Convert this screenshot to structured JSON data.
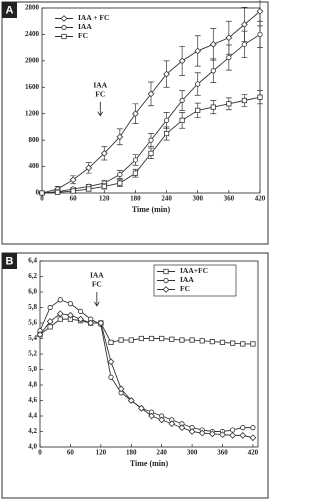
{
  "chart_data": [
    {
      "type": "line",
      "panel_label": "A",
      "xlabel": "Time (min)",
      "x": [
        0,
        30,
        60,
        90,
        120,
        150,
        180,
        210,
        240,
        270,
        300,
        330,
        360,
        390,
        420
      ],
      "series": [
        {
          "name": "IAA + FC",
          "color": "#333333",
          "marker": "diamond",
          "values": [
            0,
            60,
            200,
            380,
            600,
            850,
            1200,
            1500,
            1800,
            2000,
            2150,
            2250,
            2350,
            2550,
            2750
          ],
          "errors": [
            20,
            40,
            60,
            80,
            100,
            120,
            150,
            180,
            200,
            220,
            230,
            240,
            250,
            260,
            220
          ]
        },
        {
          "name": "IAA",
          "color": "#333333",
          "marker": "circle",
          "values": [
            0,
            20,
            60,
            100,
            150,
            280,
            500,
            800,
            1100,
            1400,
            1650,
            1850,
            2050,
            2250,
            2400
          ],
          "errors": [
            10,
            15,
            20,
            30,
            40,
            60,
            80,
            100,
            120,
            150,
            170,
            180,
            190,
            200,
            200
          ]
        },
        {
          "name": "FC",
          "color": "#333333",
          "marker": "square",
          "values": [
            0,
            10,
            30,
            60,
            100,
            150,
            300,
            600,
            900,
            1100,
            1250,
            1300,
            1350,
            1400,
            1450
          ],
          "errors": [
            10,
            15,
            20,
            30,
            40,
            50,
            60,
            80,
            100,
            120,
            110,
            100,
            90,
            90,
            100
          ]
        }
      ],
      "xlim": [
        0,
        420
      ],
      "xticks": [
        0,
        60,
        120,
        180,
        240,
        300,
        360,
        420
      ],
      "ylim": [
        0,
        2800
      ],
      "yticks": [
        0,
        400,
        800,
        1200,
        1600,
        2000,
        2400,
        2800
      ],
      "legend": "upper left",
      "annotation": {
        "text": [
          "IAA",
          "FC"
        ],
        "x": 120
      }
    },
    {
      "type": "line",
      "panel_label": "B",
      "xlabel": "Time (min)",
      "x": [
        0,
        20,
        40,
        60,
        80,
        100,
        120,
        140,
        160,
        180,
        200,
        220,
        240,
        260,
        280,
        300,
        320,
        340,
        360,
        380,
        400,
        420
      ],
      "series": [
        {
          "name": "IAA+FC",
          "color": "#333333",
          "marker": "square",
          "values": [
            5.45,
            5.55,
            5.65,
            5.65,
            5.63,
            5.6,
            5.6,
            5.35,
            5.38,
            5.38,
            5.4,
            5.4,
            5.4,
            5.39,
            5.38,
            5.38,
            5.37,
            5.36,
            5.35,
            5.34,
            5.33,
            5.33
          ]
        },
        {
          "name": "IAA",
          "color": "#333333",
          "marker": "circle",
          "values": [
            5.5,
            5.8,
            5.9,
            5.85,
            5.75,
            5.65,
            5.58,
            4.9,
            4.7,
            4.6,
            4.5,
            4.45,
            4.4,
            4.35,
            4.3,
            4.25,
            4.22,
            4.2,
            4.2,
            4.22,
            4.25,
            4.25
          ]
        },
        {
          "name": "FC",
          "color": "#333333",
          "marker": "diamond",
          "values": [
            5.45,
            5.62,
            5.72,
            5.7,
            5.65,
            5.6,
            5.6,
            5.1,
            4.75,
            4.6,
            4.5,
            4.4,
            4.35,
            4.3,
            4.25,
            4.2,
            4.18,
            4.17,
            4.16,
            4.15,
            4.15,
            4.12
          ]
        }
      ],
      "xlim": [
        0,
        430
      ],
      "xticks": [
        0,
        60,
        120,
        180,
        240,
        300,
        360,
        420
      ],
      "ylim": [
        4.0,
        6.4
      ],
      "yticks": [
        {
          "value": 4.0,
          "label": "4,0"
        },
        {
          "value": 4.2,
          "label": "4,2"
        },
        {
          "value": 4.4,
          "label": "4,4"
        },
        {
          "value": 4.6,
          "label": "4,6"
        },
        {
          "value": 4.8,
          "label": "4,8"
        },
        {
          "value": 5.0,
          "label": "5,0"
        },
        {
          "value": 5.2,
          "label": "5,2"
        },
        {
          "value": 5.4,
          "label": "5,4"
        },
        {
          "value": 5.6,
          "label": "5,6"
        },
        {
          "value": 5.8,
          "label": "5,8"
        },
        {
          "value": 6.0,
          "label": "6,0"
        },
        {
          "value": 6.2,
          "label": "6,2"
        },
        {
          "value": 6.4,
          "label": "6,4"
        }
      ],
      "legend": "upper right",
      "annotation": {
        "text": [
          "IAA",
          "FC"
        ],
        "x": 120
      }
    }
  ]
}
